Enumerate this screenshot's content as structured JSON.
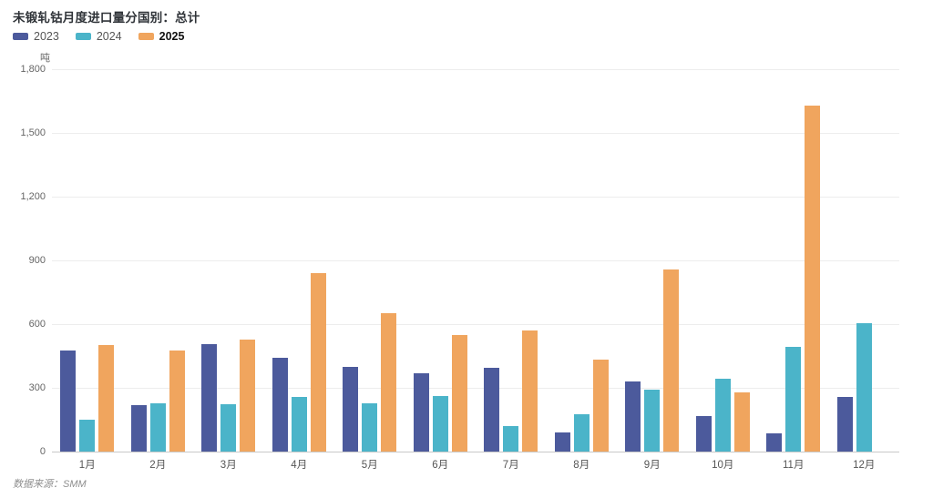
{
  "title": "未锻轧钴月度进口量分国别：总计",
  "y_axis_unit": "吨",
  "source_note": "数据来源：SMM",
  "colors": {
    "series_2023": "#4C5A9C",
    "series_2024": "#4BB4C9",
    "series_2025": "#F0A55E",
    "gridline": "#ededed",
    "axis_line": "#c9c9c9"
  },
  "chart_data": {
    "type": "bar",
    "title": "未锻轧钴月度进口量分国别：总计",
    "xlabel": "",
    "ylabel": "吨",
    "ylim": [
      0,
      1800
    ],
    "yticks": [
      0,
      300,
      600,
      900,
      1200,
      1500,
      1800
    ],
    "grid": true,
    "legend_position": "top-left",
    "categories": [
      "1月",
      "2月",
      "3月",
      "4月",
      "5月",
      "6月",
      "7月",
      "8月",
      "9月",
      "10月",
      "11月",
      "12月"
    ],
    "series": [
      {
        "name": "2023",
        "color": "#4C5A9C",
        "emphasis": false,
        "values": [
          475,
          217,
          507,
          443,
          400,
          367,
          393,
          89,
          332,
          166,
          87,
          257
        ]
      },
      {
        "name": "2024",
        "color": "#4BB4C9",
        "emphasis": false,
        "values": [
          149,
          228,
          224,
          255,
          227,
          261,
          120,
          176,
          291,
          344,
          491,
          604
        ]
      },
      {
        "name": "2025",
        "color": "#F0A55E",
        "emphasis": true,
        "values": [
          500,
          477,
          527,
          838,
          651,
          549,
          572,
          433,
          857,
          279,
          1629,
          null
        ]
      }
    ]
  }
}
